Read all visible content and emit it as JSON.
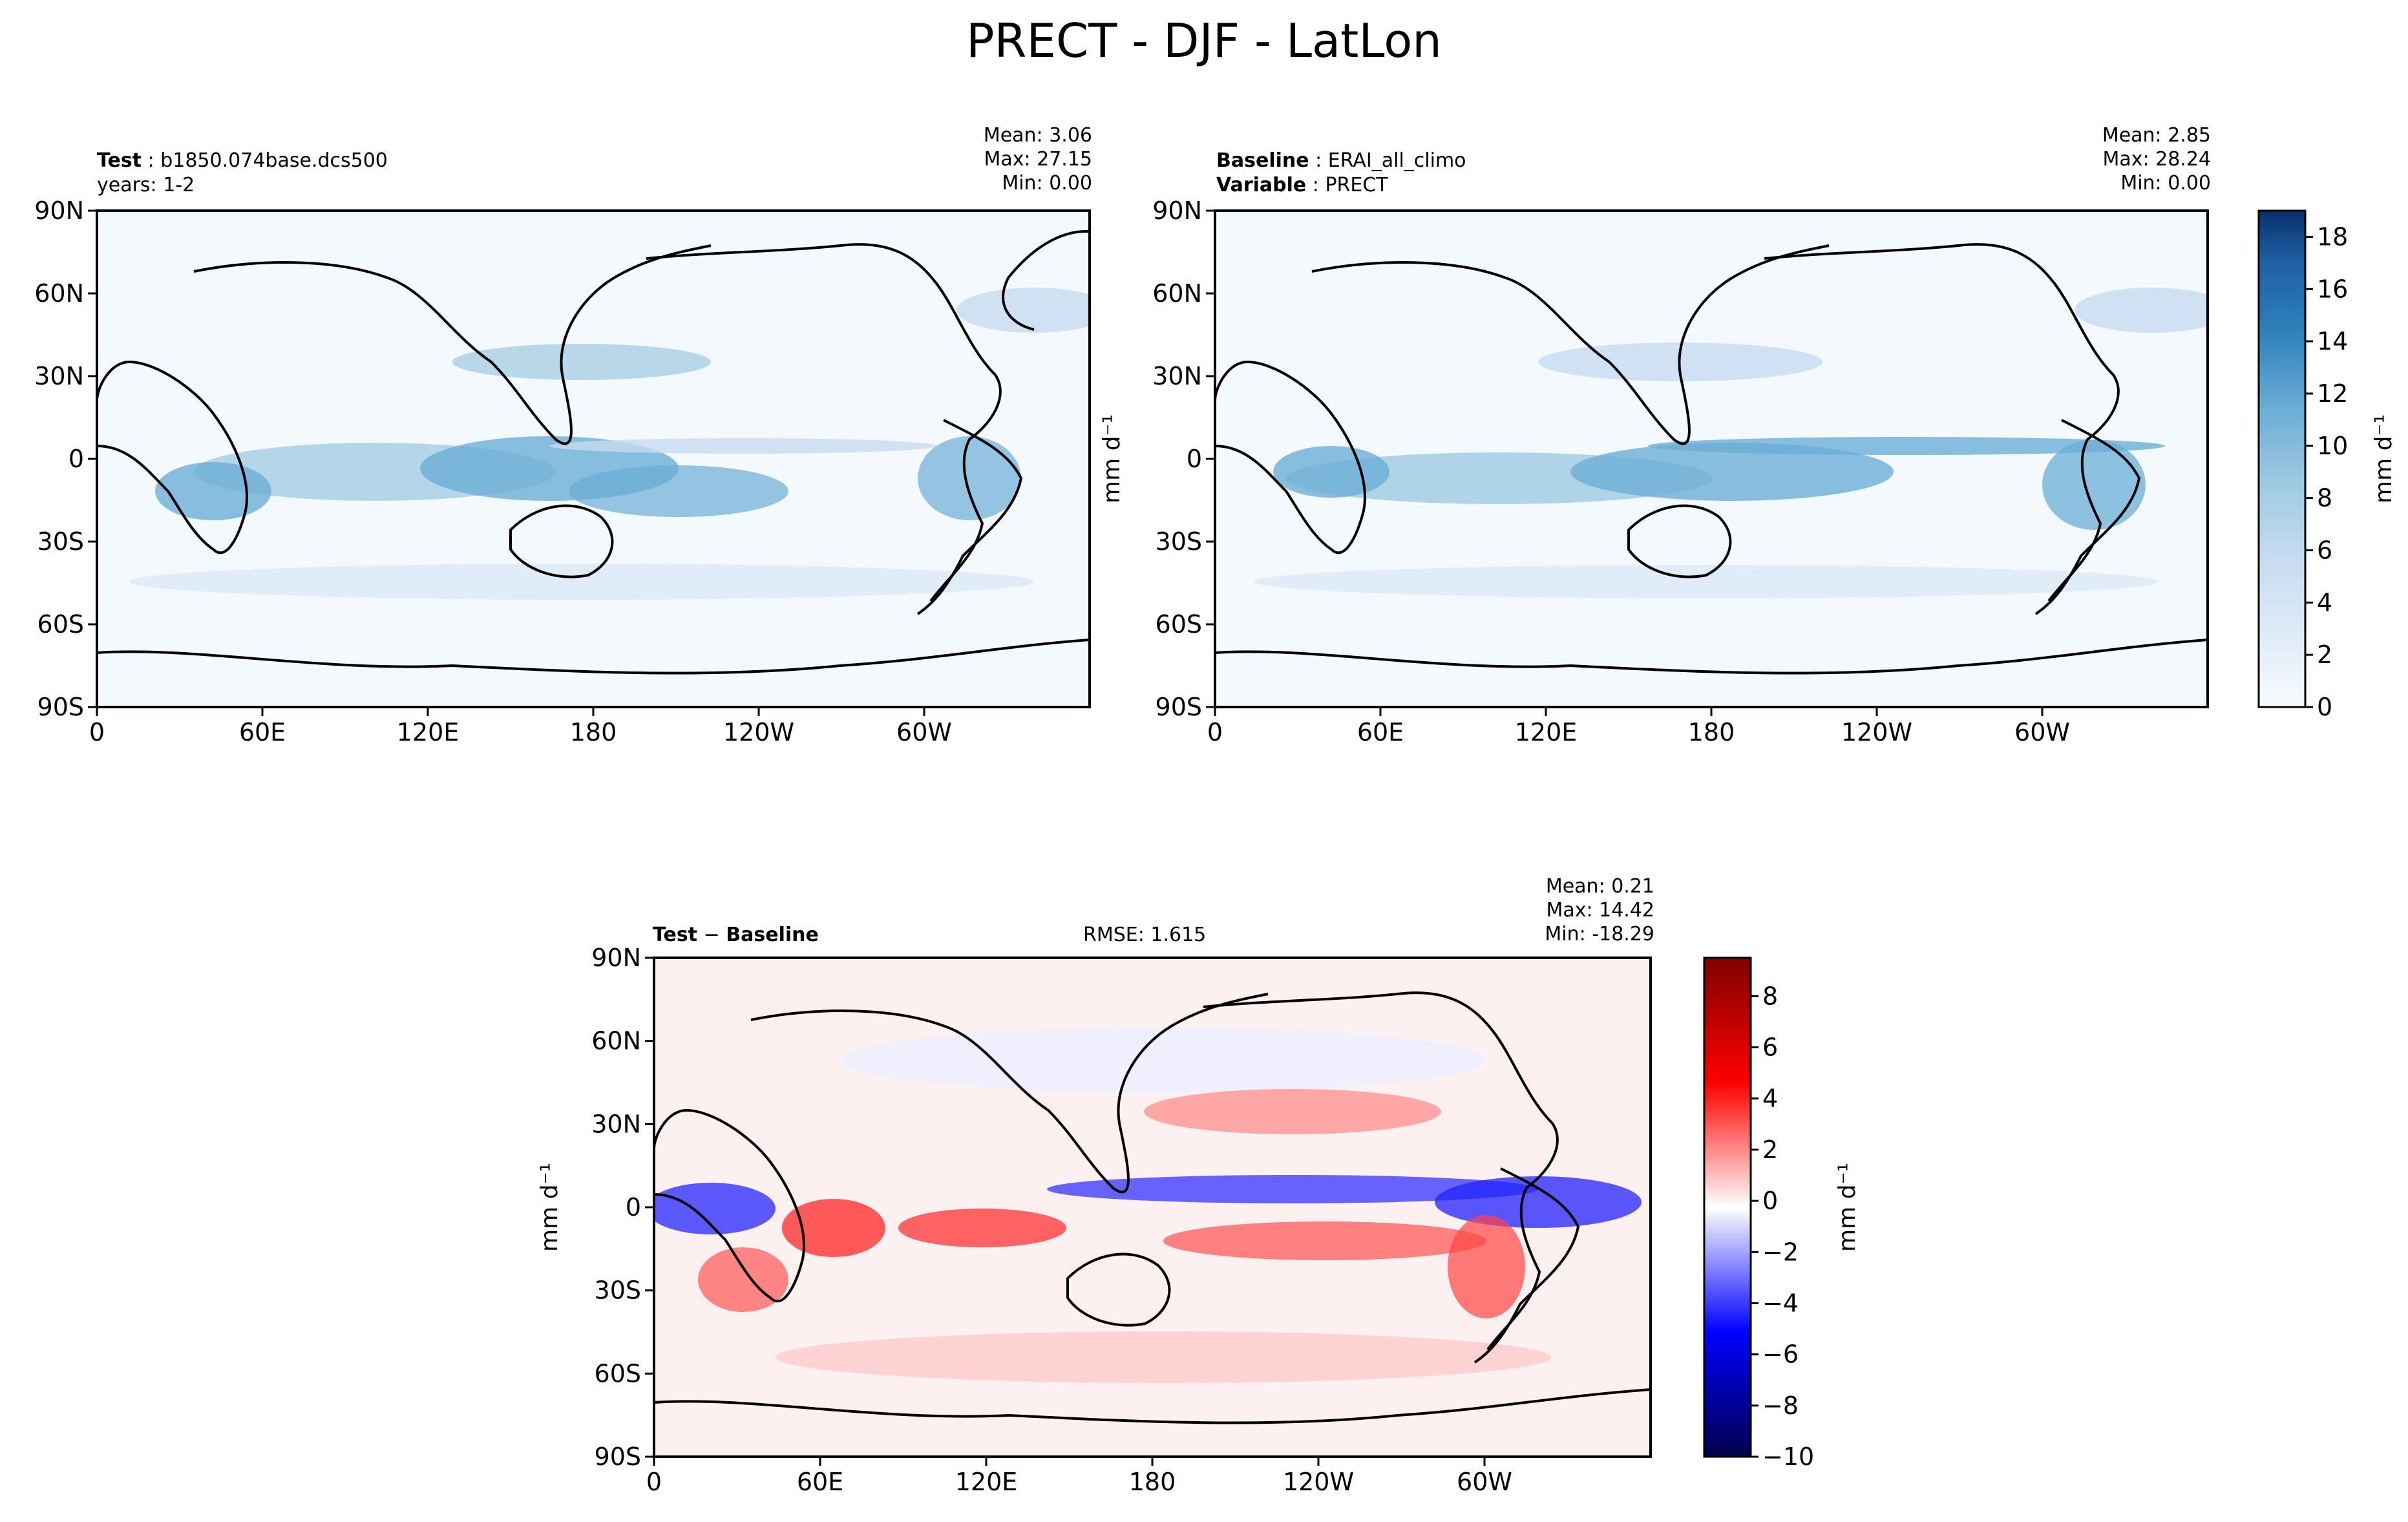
{
  "figure": {
    "title": "PRECT - DJF - LatLon"
  },
  "panels": {
    "test": {
      "label_bold": "Test",
      "label_value": "b1850.074base.dcs500",
      "line2": "years: 1-2",
      "stats": [
        "Mean:  3.06",
        "Max: 27.15",
        "Min:  0.00"
      ]
    },
    "baseline": {
      "label_bold": "Baseline",
      "label_value": "ERAI_all_climo",
      "line2_bold": "Variable",
      "line2_value": "PRECT",
      "stats": [
        "Mean:  2.85",
        "Max: 28.24",
        "Min:  0.00"
      ]
    },
    "diff": {
      "label_bold_1": "Test",
      "label_sep": " − ",
      "label_bold_2": "Baseline",
      "rmse": "RMSE: 1.615",
      "stats": [
        "Mean:  0.21",
        "Max: 14.42",
        "Min: -18.29"
      ]
    }
  },
  "chart_data": [
    {
      "type": "heatmap",
      "name": "Test",
      "x_ticks": [
        "0",
        "60E",
        "120E",
        "180",
        "120W",
        "60W"
      ],
      "y_ticks": [
        "90N",
        "60N",
        "30N",
        "0",
        "30S",
        "60S",
        "90S"
      ],
      "xlim": [
        0,
        360
      ],
      "ylim": [
        -90,
        90
      ],
      "colormap": "Blues",
      "colorbar": {
        "label": "mm d⁻¹",
        "ticks": [
          "0",
          "2",
          "4",
          "6",
          "8",
          "10",
          "12",
          "14",
          "16",
          "18"
        ],
        "range": [
          0,
          19
        ]
      },
      "stats": {
        "mean": 3.06,
        "max": 27.15,
        "min": 0.0
      }
    },
    {
      "type": "heatmap",
      "name": "Baseline",
      "x_ticks": [
        "0",
        "60E",
        "120E",
        "180",
        "120W",
        "60W"
      ],
      "y_ticks": [
        "90N",
        "60N",
        "30N",
        "0",
        "30S",
        "60S",
        "90S"
      ],
      "xlim": [
        0,
        360
      ],
      "ylim": [
        -90,
        90
      ],
      "colormap": "Blues",
      "stats": {
        "mean": 2.85,
        "max": 28.24,
        "min": 0.0
      }
    },
    {
      "type": "heatmap",
      "name": "Test - Baseline",
      "x_ticks": [
        "0",
        "60E",
        "120E",
        "180",
        "120W",
        "60W"
      ],
      "y_ticks": [
        "90N",
        "60N",
        "30N",
        "0",
        "30S",
        "60S",
        "90S"
      ],
      "xlim": [
        0,
        360
      ],
      "ylim": [
        -90,
        90
      ],
      "colormap": "seismic",
      "colorbar": {
        "label": "mm d⁻¹",
        "ticks": [
          "−10",
          "−8",
          "−6",
          "−4",
          "−2",
          "0",
          "2",
          "4",
          "6",
          "8"
        ],
        "range": [
          -10,
          9.5
        ]
      },
      "stats": {
        "mean": 0.21,
        "max": 14.42,
        "min": -18.29,
        "rmse": 1.615
      }
    }
  ],
  "axis_side_label": "mm d⁻¹",
  "colors": {
    "frame": "#000000",
    "coast": "#000000"
  }
}
